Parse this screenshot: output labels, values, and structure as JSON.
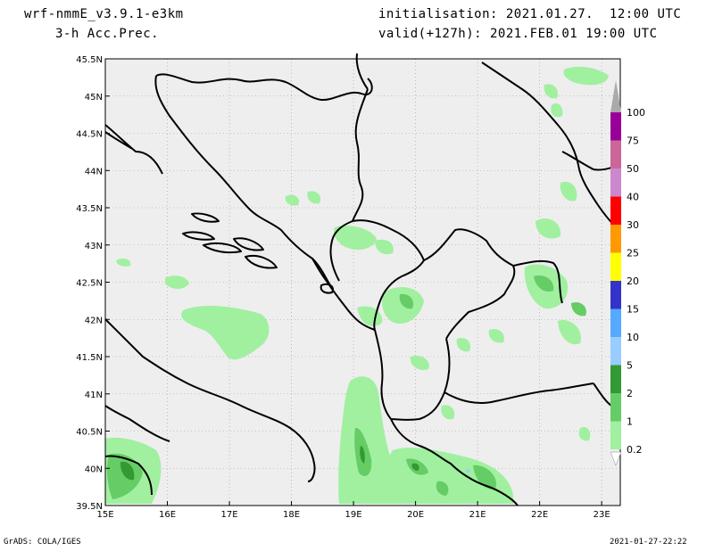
{
  "header": {
    "model": "wrf-nmmE_v3.9.1-e3km",
    "field": "3-h Acc.Prec.",
    "init": "initialisation: 2021.01.27.  12:00 UTC",
    "valid": "valid(+127h): 2021.FEB.01 19:00 UTC"
  },
  "axes": {
    "lat_labels": [
      "45.5N",
      "45N",
      "44.5N",
      "44N",
      "43.5N",
      "43N",
      "42.5N",
      "42N",
      "41.5N",
      "41N",
      "40.5N",
      "40N",
      "39.5N"
    ],
    "lon_labels": [
      "15E",
      "16E",
      "17E",
      "18E",
      "19E",
      "20E",
      "21E",
      "22E",
      "23E"
    ]
  },
  "legend": {
    "levels": [
      "0.2",
      "1",
      "2",
      "5",
      "10",
      "15",
      "20",
      "25",
      "30",
      "40",
      "50",
      "75",
      "100"
    ],
    "colors": [
      "#a0f0a0",
      "#66cc66",
      "#339933",
      "#99ccff",
      "#55aaff",
      "#3333cc",
      "#ffff00",
      "#ff9900",
      "#ff0000",
      "#cc88cc",
      "#cc6699",
      "#990099",
      "#aaaaaa"
    ]
  },
  "colors": {
    "ocean_land_bg": "#eeeeee",
    "border": "#000000",
    "grid": "#9a9a9a"
  },
  "footer": {
    "left": "GrADS: COLA/IGES",
    "right": "2021-01-27-22:22"
  }
}
